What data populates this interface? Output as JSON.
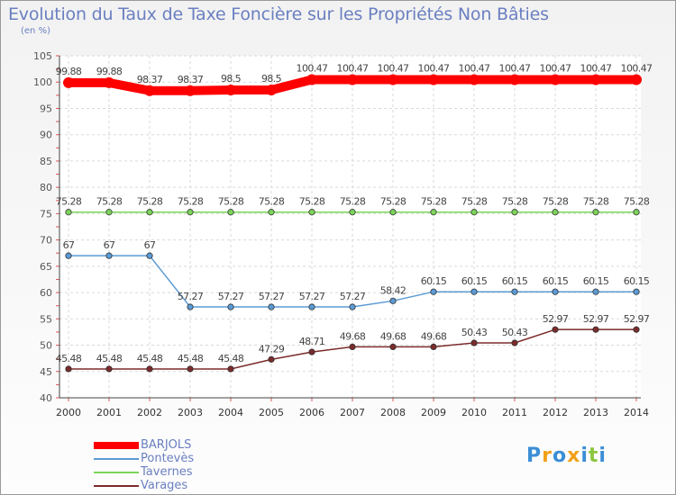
{
  "title": "Evolution du Taux de Taxe Foncière sur les Propriétés Non Bâties",
  "subtitle": "(en %)",
  "logo": [
    "P",
    "r",
    "o",
    "x",
    "i",
    "t",
    "i"
  ],
  "logo_colors": [
    "#3b8ed6",
    "#f2a019",
    "#3b8ed6",
    "#f2a019",
    "#3b8ed6",
    "#8cc63f",
    "#3b8ed6"
  ],
  "chart_data": {
    "type": "line",
    "title": "Evolution du Taux de Taxe Foncière sur les Propriétés Non Bâties",
    "ylabel": "(en %)",
    "xlabel": "",
    "ylim": [
      40,
      105
    ],
    "y_ticks": [
      "40",
      "45",
      "50",
      "55",
      "60",
      "65",
      "70",
      "75",
      "80",
      "85",
      "90",
      "95",
      "100",
      "105"
    ],
    "categories": [
      "2000",
      "2001",
      "2002",
      "2003",
      "2004",
      "2005",
      "2006",
      "2007",
      "2008",
      "2009",
      "2010",
      "2011",
      "2012",
      "2013",
      "2014"
    ],
    "grid": true,
    "legend_position": "bottom-left",
    "series": [
      {
        "name": "BARJOLS",
        "color": "#ff0000",
        "emphasis": true,
        "values": [
          99.88,
          99.88,
          98.37,
          98.37,
          98.5,
          98.5,
          100.47,
          100.47,
          100.47,
          100.47,
          100.47,
          100.47,
          100.47,
          100.47,
          100.47
        ],
        "labels": [
          "99.88",
          "99.88",
          "98.37",
          "98.37",
          "98.5",
          "98.5",
          "100.47",
          "100.47",
          "100.47",
          "100.47",
          "100.47",
          "100.47",
          "100.47",
          "100.47",
          "100.47"
        ]
      },
      {
        "name": "Pontevès",
        "color": "#5b9bd5",
        "emphasis": false,
        "values": [
          67,
          67,
          67,
          57.27,
          57.27,
          57.27,
          57.27,
          57.27,
          58.42,
          60.15,
          60.15,
          60.15,
          60.15,
          60.15,
          60.15
        ],
        "labels": [
          "67",
          "67",
          "67",
          "57.27",
          "57.27",
          "57.27",
          "57.27",
          "57.27",
          "58.42",
          "60.15",
          "60.15",
          "60.15",
          "60.15",
          "60.15",
          "60.15"
        ]
      },
      {
        "name": "Tavernes",
        "color": "#7cd45a",
        "emphasis": false,
        "values": [
          75.28,
          75.28,
          75.28,
          75.28,
          75.28,
          75.28,
          75.28,
          75.28,
          75.28,
          75.28,
          75.28,
          75.28,
          75.28,
          75.28,
          75.28
        ],
        "labels": [
          "75.28",
          "75.28",
          "75.28",
          "75.28",
          "75.28",
          "75.28",
          "75.28",
          "75.28",
          "75.28",
          "75.28",
          "75.28",
          "75.28",
          "75.28",
          "75.28",
          "75.28"
        ]
      },
      {
        "name": "Varages",
        "color": "#7b2b2b",
        "emphasis": false,
        "values": [
          45.48,
          45.48,
          45.48,
          45.48,
          45.48,
          47.29,
          48.71,
          49.68,
          49.68,
          49.68,
          50.43,
          50.43,
          52.97,
          52.97,
          52.97
        ],
        "labels": [
          "45.48",
          "45.48",
          "45.48",
          "45.48",
          "45.48",
          "47.29",
          "48.71",
          "49.68",
          "49.68",
          "49.68",
          "50.43",
          "50.43",
          "52.97",
          "52.97",
          "52.97"
        ]
      }
    ]
  }
}
